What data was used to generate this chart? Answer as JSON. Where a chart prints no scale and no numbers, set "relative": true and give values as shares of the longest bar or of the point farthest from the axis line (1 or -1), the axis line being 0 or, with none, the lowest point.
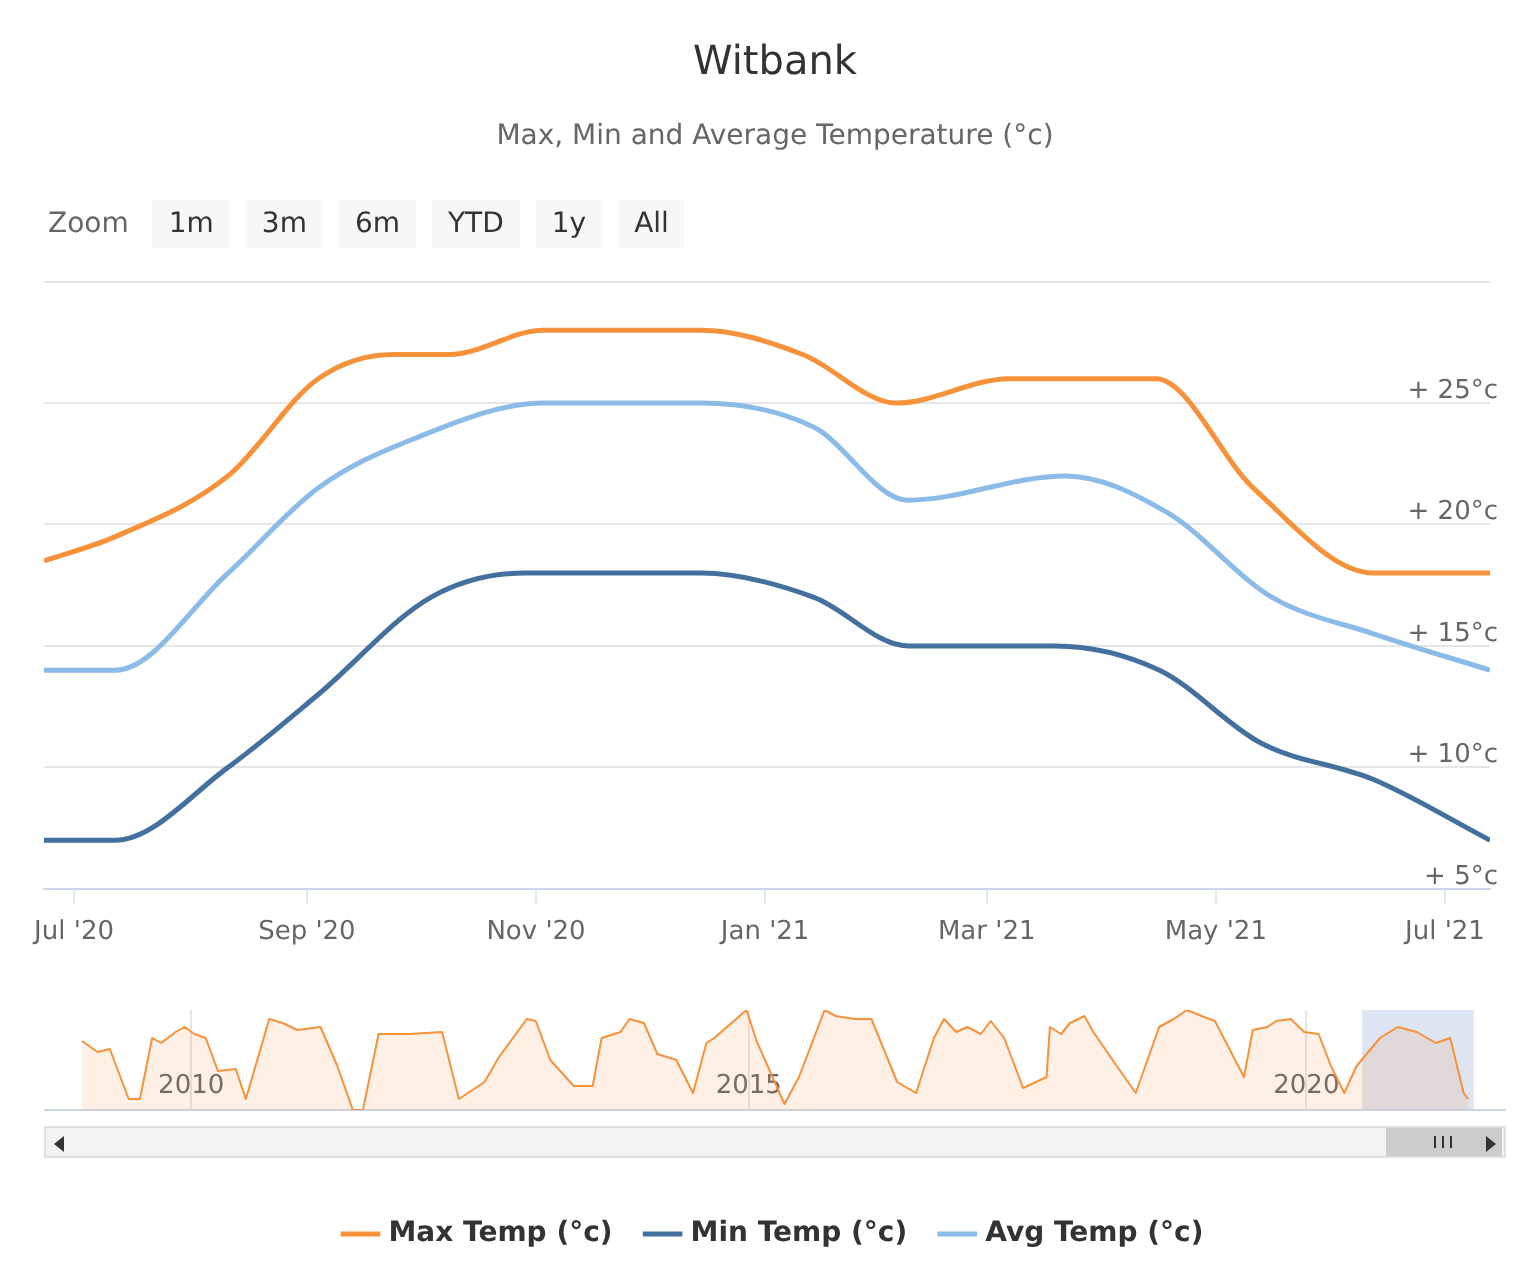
{
  "chart_data": [
    {
      "type": "line",
      "title": "Witbank",
      "subtitle": "Max, Min and Average Temperature (°c)",
      "xlim": [
        "2020-06-23",
        "2021-07-13"
      ],
      "xticks": [
        {
          "value": "2020-07-01",
          "label": "Jul '20"
        },
        {
          "value": "2020-09-01",
          "label": "Sep '20"
        },
        {
          "value": "2020-11-01",
          "label": "Nov '20"
        },
        {
          "value": "2021-01-01",
          "label": "Jan '21"
        },
        {
          "value": "2021-03-01",
          "label": "Mar '21"
        },
        {
          "value": "2021-05-01",
          "label": "May '21"
        },
        {
          "value": "2021-07-01",
          "label": "Jul '21"
        }
      ],
      "ylim": [
        5,
        30
      ],
      "yticks": [
        {
          "value": 5,
          "label": "+ 5°c"
        },
        {
          "value": 10,
          "label": "+ 10°c"
        },
        {
          "value": 15,
          "label": "+ 15°c"
        },
        {
          "value": 20,
          "label": "+ 20°c"
        },
        {
          "value": 25,
          "label": "+ 25°c"
        },
        {
          "value": 30,
          "label": null
        }
      ],
      "grid": "y",
      "legend": "bottom",
      "marker": "none",
      "series": [
        {
          "name": "Max Temp (°c)",
          "color": "#f7923a",
          "x": [
            "2020-06-23",
            "2020-07-12",
            "2020-08-11",
            "2020-09-04",
            "2020-09-24",
            "2020-10-09",
            "2020-11-03",
            "2020-12-15",
            "2021-01-11",
            "2021-02-05",
            "2021-03-07",
            "2021-04-15",
            "2021-05-11",
            "2021-06-12",
            "2021-07-13"
          ],
          "values": [
            18.5,
            19.5,
            22,
            26,
            27,
            27,
            28,
            28,
            27,
            25,
            26,
            26,
            21.5,
            18,
            18
          ]
        },
        {
          "name": "Min Temp (°c)",
          "color": "#43709f",
          "x": [
            "2020-06-23",
            "2020-07-12",
            "2020-08-11",
            "2020-09-04",
            "2020-10-04",
            "2020-10-29",
            "2020-12-15",
            "2021-01-14",
            "2021-02-08",
            "2021-03-19",
            "2021-04-16",
            "2021-05-13",
            "2021-06-12",
            "2021-07-13"
          ],
          "values": [
            7,
            7,
            10,
            13,
            17,
            18,
            18,
            17,
            15,
            15,
            14,
            11,
            9.5,
            7
          ]
        },
        {
          "name": "Avg Temp (°c)",
          "color": "#8bbbe8",
          "x": [
            "2020-06-23",
            "2020-07-12",
            "2020-08-11",
            "2020-09-04",
            "2020-09-29",
            "2020-11-03",
            "2020-12-15",
            "2021-01-14",
            "2021-02-08",
            "2021-03-22",
            "2021-04-18",
            "2021-05-16",
            "2021-06-12",
            "2021-07-13"
          ],
          "values": [
            14,
            14,
            18,
            21.5,
            23.5,
            25,
            25,
            24,
            21,
            22,
            20.5,
            17,
            15.5,
            14
          ]
        }
      ]
    },
    {
      "type": "other",
      "annotations": [
        "Zoom",
        "1m",
        "3m",
        "6m",
        "YTD",
        "1y",
        "All"
      ]
    },
    {
      "type": "area",
      "relative": true,
      "xlim": [
        2008.68,
        2021.79
      ],
      "xticks": [
        2010,
        2015,
        2020
      ],
      "grid": "x",
      "tick_labels": "x",
      "marker": "none",
      "bands": [
        {
          "axis": "x",
          "from": 2020.5,
          "to": 2021.5,
          "color": "#ccd6eb"
        }
      ],
      "series": [
        {
          "color": "#f7923a",
          "x": [
            2009.02,
            2009.16,
            2009.27,
            2009.44,
            2009.54,
            2009.65,
            2009.73,
            2009.86,
            2009.94,
            2010.03,
            2010.13,
            2010.24,
            2010.4,
            2010.49,
            2010.7,
            2010.82,
            2010.95,
            2011.16,
            2011.31,
            2011.45,
            2011.54,
            2011.68,
            2011.96,
            2012.25,
            2012.4,
            2012.63,
            2012.76,
            2013.01,
            2013.09,
            2013.22,
            2013.43,
            2013.6,
            2013.68,
            2013.85,
            2013.93,
            2014.06,
            2014.18,
            2014.35,
            2014.5,
            2014.62,
            2014.69,
            2014.98,
            2015.07,
            2015.32,
            2015.45,
            2015.68,
            2015.78,
            2015.95,
            2016.1,
            2016.33,
            2016.5,
            2016.66,
            2016.75,
            2016.86,
            2016.96,
            2017.08,
            2017.17,
            2017.29,
            2017.46,
            2017.67,
            2017.7,
            2017.8,
            2017.88,
            2018.01,
            2018.09,
            2018.3,
            2018.47,
            2018.68,
            2018.81,
            2018.93,
            2019.06,
            2019.18,
            2019.31,
            2019.44,
            2019.52,
            2019.65,
            2019.73,
            2019.86,
            2019.98,
            2020.11,
            2020.22,
            2020.34,
            2020.45,
            2020.66,
            2020.82,
            2020.99,
            2021.16,
            2021.29,
            2021.41,
            2021.45
          ],
          "values": [
            0.69,
            0.58,
            0.61,
            0.11,
            0.11,
            0.72,
            0.67,
            0.78,
            0.83,
            0.76,
            0.72,
            0.39,
            0.41,
            0.11,
            0.91,
            0.87,
            0.8,
            0.83,
            0.44,
            0,
            0,
            0.76,
            0.76,
            0.78,
            0.11,
            0.28,
            0.53,
            0.91,
            0.89,
            0.5,
            0.24,
            0.24,
            0.72,
            0.78,
            0.91,
            0.87,
            0.56,
            0.5,
            0.17,
            0.67,
            0.72,
            1,
            0.69,
            0.06,
            0.33,
            1,
            0.94,
            0.91,
            0.91,
            0.28,
            0.17,
            0.72,
            0.91,
            0.78,
            0.83,
            0.76,
            0.89,
            0.72,
            0.22,
            0.33,
            0.83,
            0.76,
            0.87,
            0.94,
            0.78,
            0.44,
            0.17,
            0.83,
            0.91,
            1,
            0.94,
            0.89,
            0.61,
            0.33,
            0.8,
            0.83,
            0.89,
            0.91,
            0.78,
            0.76,
            0.44,
            0.17,
            0.44,
            0.72,
            0.83,
            0.78,
            0.67,
            0.72,
            0.17,
            0.11
          ]
        }
      ]
    }
  ]
}
